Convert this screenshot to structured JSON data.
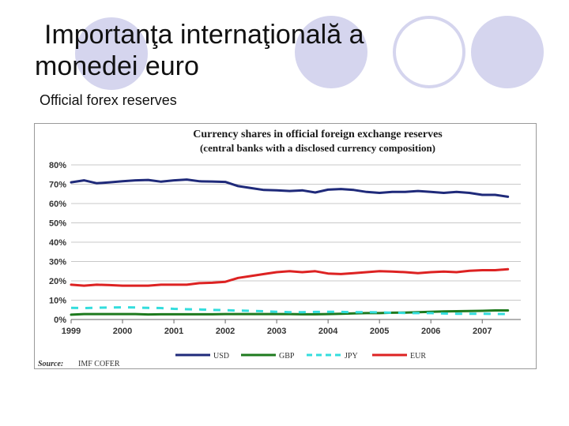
{
  "slide": {
    "title_line1": "Importanţa internaţională a",
    "title_line2": "monedei euro",
    "subtitle": "Official forex reserves"
  },
  "colors": {
    "usd": "#1f2a7a",
    "gbp": "#1e7a1e",
    "jpy": "#33dddd",
    "eur": "#dd2222",
    "decor": "#d5d5ee"
  },
  "chart_data": {
    "type": "line",
    "title": "Currency shares in official foreign exchange reserves",
    "subtitle": "(central banks with a disclosed currency composition)",
    "xlabel": "",
    "ylabel": "",
    "ylim": [
      0,
      80
    ],
    "yticks": [
      "0%",
      "10%",
      "20%",
      "30%",
      "40%",
      "50%",
      "60%",
      "70%",
      "80%"
    ],
    "ytick_values": [
      0,
      10,
      20,
      30,
      40,
      50,
      60,
      70,
      80
    ],
    "xlim": [
      1999,
      2007.75
    ],
    "xticks": [
      "1999",
      "2000",
      "2001",
      "2002",
      "2003",
      "2004",
      "2005",
      "2006",
      "2007"
    ],
    "xtick_values": [
      1999,
      2000,
      2001,
      2002,
      2003,
      2004,
      2005,
      2006,
      2007
    ],
    "grid": true,
    "legend_position": "bottom",
    "source_label": "Source:",
    "source_text": "IMF COFER",
    "x": [
      1999,
      1999.25,
      1999.5,
      1999.75,
      2000,
      2000.25,
      2000.5,
      2000.75,
      2001,
      2001.25,
      2001.5,
      2001.75,
      2002,
      2002.25,
      2002.5,
      2002.75,
      2003,
      2003.25,
      2003.5,
      2003.75,
      2004,
      2004.25,
      2004.5,
      2004.75,
      2005,
      2005.25,
      2005.5,
      2005.75,
      2006,
      2006.25,
      2006.5,
      2006.75,
      2007,
      2007.25,
      2007.5
    ],
    "series": [
      {
        "name": "USD",
        "style": "solid",
        "color": "#1f2a7a",
        "values": [
          71,
          72,
          70.5,
          71,
          71.5,
          72,
          72.2,
          71.3,
          72,
          72.4,
          71.5,
          71.4,
          71.2,
          69,
          68,
          67,
          66.8,
          66.5,
          66.8,
          65.7,
          67.2,
          67.5,
          67,
          66,
          65.5,
          66,
          66,
          66.5,
          66,
          65.5,
          66,
          65.5,
          64.5,
          64.5,
          63.5
        ]
      },
      {
        "name": "GBP",
        "style": "solid",
        "color": "#1e7a1e",
        "values": [
          2.5,
          2.8,
          2.8,
          2.8,
          2.8,
          2.8,
          2.6,
          2.7,
          2.7,
          2.7,
          2.7,
          2.7,
          2.8,
          2.8,
          2.8,
          2.8,
          2.8,
          2.8,
          2.7,
          2.7,
          2.8,
          3,
          3.2,
          3.3,
          3.3,
          3.5,
          3.6,
          3.8,
          4,
          4.2,
          4.3,
          4.4,
          4.5,
          4.7,
          4.7
        ]
      },
      {
        "name": "JPY",
        "style": "dashed",
        "color": "#33dddd",
        "values": [
          6,
          5.9,
          6.1,
          6.2,
          6.3,
          6.2,
          6,
          5.9,
          5.5,
          5.3,
          5.2,
          5,
          4.8,
          4.6,
          4.5,
          4.3,
          4,
          3.8,
          3.8,
          3.9,
          4,
          3.9,
          3.8,
          3.8,
          3.7,
          3.5,
          3.4,
          3.3,
          3.3,
          3.1,
          3,
          3,
          3,
          2.9,
          2.8
        ]
      },
      {
        "name": "EUR",
        "style": "solid",
        "color": "#dd2222",
        "values": [
          18,
          17.5,
          18,
          17.8,
          17.5,
          17.5,
          17.5,
          18,
          18,
          18,
          18.8,
          19,
          19.5,
          21.5,
          22.5,
          23.5,
          24.5,
          25,
          24.5,
          25,
          23.8,
          23.5,
          24,
          24.5,
          25,
          24.8,
          24.5,
          24,
          24.5,
          24.8,
          24.5,
          25.2,
          25.5,
          25.5,
          26
        ]
      }
    ]
  }
}
